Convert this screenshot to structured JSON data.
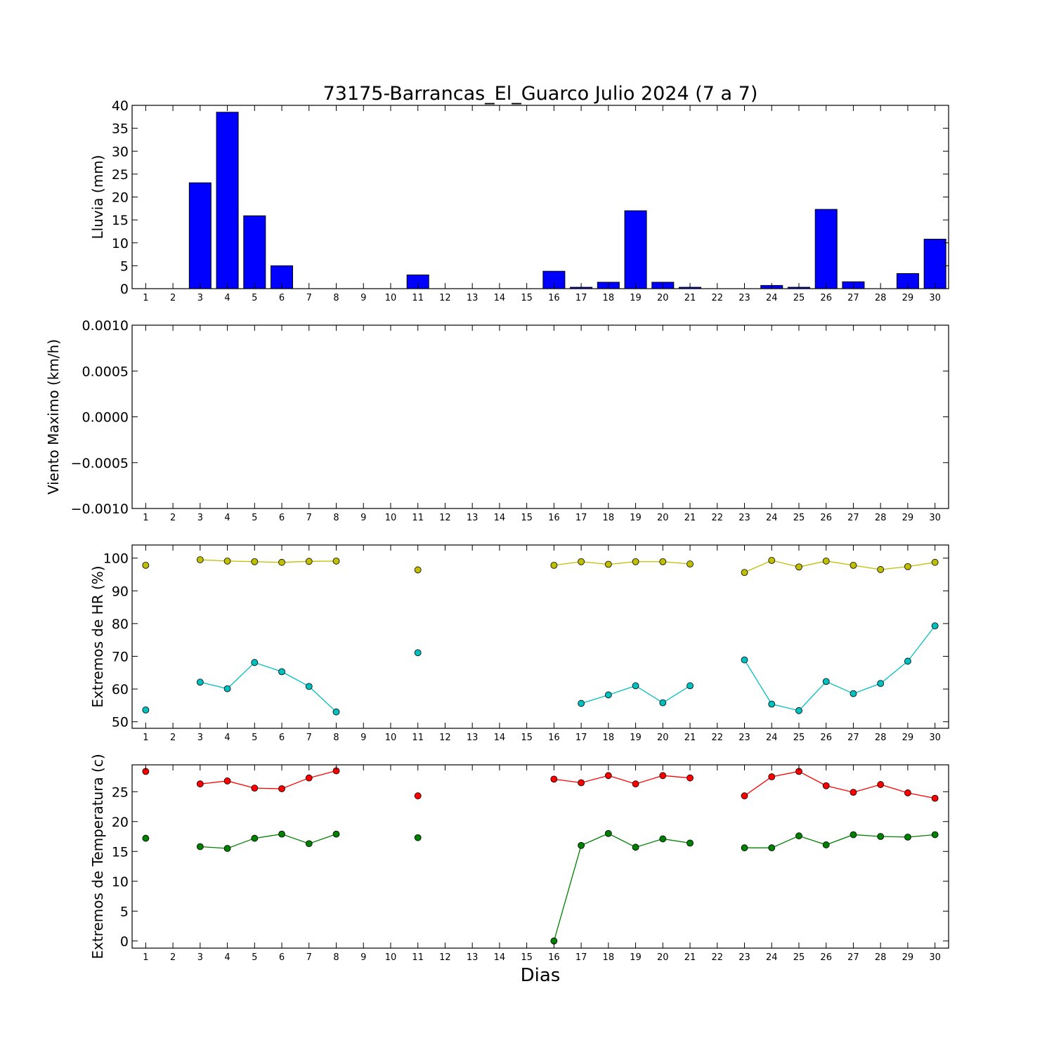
{
  "chart_data": {
    "title": "73175-Barrancas_El_Guarco Julio 2024  (7 a 7)",
    "xlabel": "Dias",
    "days": [
      1,
      2,
      3,
      4,
      5,
      6,
      7,
      8,
      9,
      10,
      11,
      12,
      13,
      14,
      15,
      16,
      17,
      18,
      19,
      20,
      21,
      22,
      23,
      24,
      25,
      26,
      27,
      28,
      29,
      30
    ],
    "panels": [
      {
        "type": "bar",
        "ylabel": "Lluvia (mm)",
        "ylim": [
          0,
          40
        ],
        "yticks": [
          "0",
          "5",
          "10",
          "15",
          "20",
          "25",
          "30",
          "35",
          "40"
        ],
        "ytick_values": [
          0,
          5,
          10,
          15,
          20,
          25,
          30,
          35,
          40
        ],
        "colors": {
          "bar": "#0000ff",
          "edge": "#000000"
        },
        "values": [
          0,
          0,
          23.1,
          38.5,
          15.9,
          5.0,
          0,
          0,
          0,
          0,
          3.0,
          0,
          0,
          0,
          0,
          3.8,
          0.3,
          1.4,
          17.0,
          1.4,
          0.3,
          0,
          0,
          0.7,
          0.3,
          17.3,
          1.5,
          0,
          3.3,
          10.8
        ]
      },
      {
        "type": "line",
        "ylabel": "Viento Maximo (km/h)",
        "ylim": [
          -0.001,
          0.001
        ],
        "yticks": [
          "−0.0010",
          "−0.0005",
          "0.0000",
          "0.0005",
          "0.0010"
        ],
        "ytick_values": [
          -0.001,
          -0.0005,
          0,
          0.0005,
          0.001
        ],
        "series": []
      },
      {
        "type": "line",
        "ylabel": "Extremos de HR (%)",
        "ylim": [
          48,
          104
        ],
        "yticks": [
          "50",
          "60",
          "70",
          "80",
          "90",
          "100"
        ],
        "ytick_values": [
          50,
          60,
          70,
          80,
          90,
          100
        ],
        "series": [
          {
            "color": "#bfbf00",
            "values": [
              97.8,
              null,
              99.5,
              99.1,
              98.9,
              98.7,
              99.0,
              99.1,
              null,
              null,
              96.4,
              null,
              null,
              null,
              null,
              97.8,
              98.9,
              98.1,
              98.9,
              98.9,
              98.2,
              null,
              95.6,
              99.3,
              97.3,
              99.1,
              97.8,
              96.5,
              97.4,
              98.7
            ]
          },
          {
            "color": "#00bfbf",
            "values": [
              53.6,
              null,
              62.1,
              60.1,
              68.1,
              65.3,
              60.8,
              53.0,
              null,
              null,
              71.1,
              null,
              null,
              null,
              null,
              null,
              55.6,
              58.2,
              61.0,
              55.8,
              61.0,
              null,
              68.9,
              55.4,
              53.4,
              62.3,
              58.6,
              61.7,
              68.5,
              79.3
            ]
          }
        ]
      },
      {
        "type": "line",
        "ylabel": "Extremos de Temperatura (c)",
        "ylim": [
          -1.2,
          29.5
        ],
        "yticks": [
          "0",
          "5",
          "10",
          "15",
          "20",
          "25"
        ],
        "ytick_values": [
          0,
          5,
          10,
          15,
          20,
          25
        ],
        "series": [
          {
            "color": "#ff0000",
            "values": [
              28.4,
              null,
              26.3,
              26.8,
              25.6,
              25.5,
              27.3,
              28.5,
              null,
              null,
              24.3,
              null,
              null,
              null,
              null,
              27.1,
              26.5,
              27.7,
              26.3,
              27.7,
              27.3,
              null,
              24.3,
              27.5,
              28.4,
              26.0,
              24.9,
              26.2,
              24.8,
              23.9
            ]
          },
          {
            "color": "#008000",
            "values": [
              17.2,
              null,
              15.8,
              15.5,
              17.2,
              17.9,
              16.3,
              17.9,
              null,
              null,
              17.3,
              null,
              null,
              null,
              null,
              0.0,
              16.0,
              18.0,
              15.7,
              17.1,
              16.4,
              null,
              15.6,
              15.6,
              17.6,
              16.1,
              17.8,
              17.5,
              17.4,
              17.8
            ]
          }
        ]
      }
    ]
  }
}
